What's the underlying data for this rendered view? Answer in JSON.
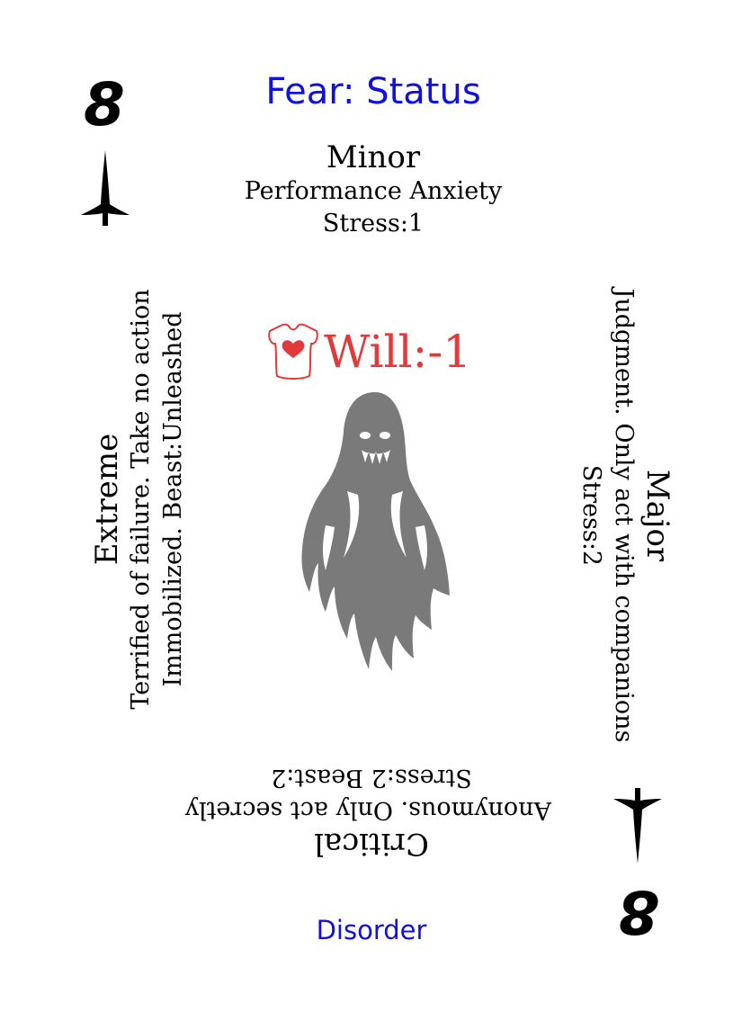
{
  "card": {
    "title": "Fear: Status",
    "rank": "8",
    "category": "Disorder",
    "accent_color": "#1010e0",
    "effect_color": "#e23a3a",
    "figure_color": "#7a7a7a",
    "effect": {
      "icon": "heart-torso-icon",
      "text": "Will:-1"
    },
    "levels": {
      "minor": {
        "label": "Minor",
        "description": "Performance Anxiety",
        "stats": "Stress:1"
      },
      "major": {
        "label": "Major",
        "description": "Judgment. Only act with companions",
        "stats": "Stress:2"
      },
      "critical": {
        "label": "Critical",
        "description": "Anonymous. Only act secretly",
        "stats": "Stress:2 Beast:2"
      },
      "extreme": {
        "label": "Extreme",
        "description": "Terrified of failure. Take no action",
        "stats": "Immobilized. Beast:Unleashed"
      }
    },
    "suit_icon": "dagger-icon",
    "illustration": "ghost-figure-icon"
  }
}
